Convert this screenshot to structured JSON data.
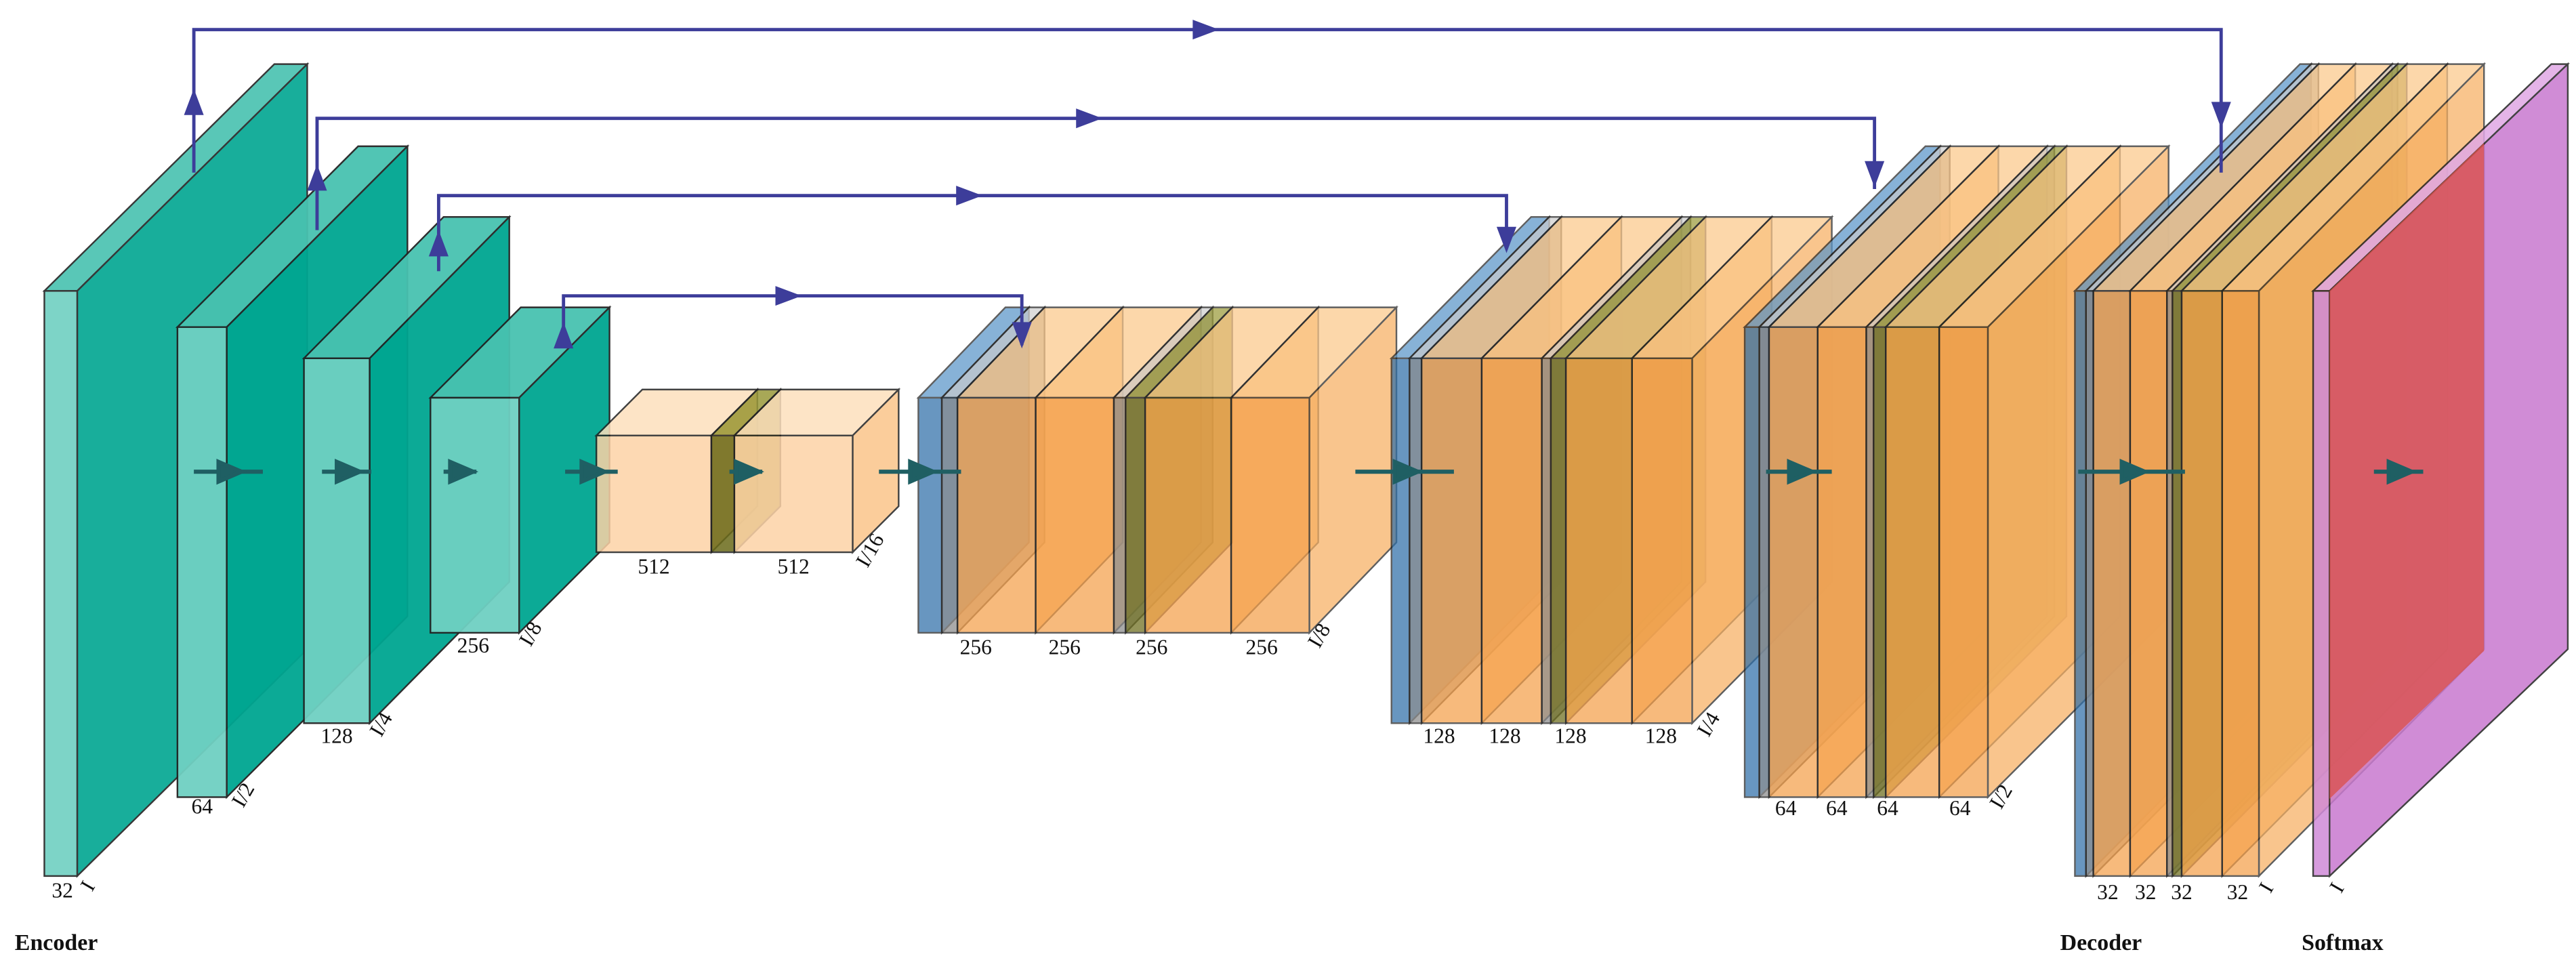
{
  "captions": {
    "encoder": "Encoder",
    "decoder": "Decoder",
    "softmax": "Softmax"
  },
  "stages": [
    {
      "channels": [
        "32"
      ],
      "scale": "I"
    },
    {
      "channels": [
        "64"
      ],
      "scale": "I/2"
    },
    {
      "channels": [
        "128"
      ],
      "scale": "I/4"
    },
    {
      "channels": [
        "256"
      ],
      "scale": "I/8"
    },
    {
      "channels": [
        "512",
        "512"
      ],
      "scale": "I/16"
    },
    {
      "channels": [
        "256",
        "256",
        "256",
        "256"
      ],
      "scale": "I/8"
    },
    {
      "channels": [
        "128",
        "128",
        "128",
        "128"
      ],
      "scale": "I/4"
    },
    {
      "channels": [
        "64",
        "64",
        "64",
        "64"
      ],
      "scale": "I/2"
    },
    {
      "channels": [
        "32",
        "32",
        "32",
        "32"
      ],
      "scale": "I"
    },
    {
      "scale": "I"
    }
  ]
}
